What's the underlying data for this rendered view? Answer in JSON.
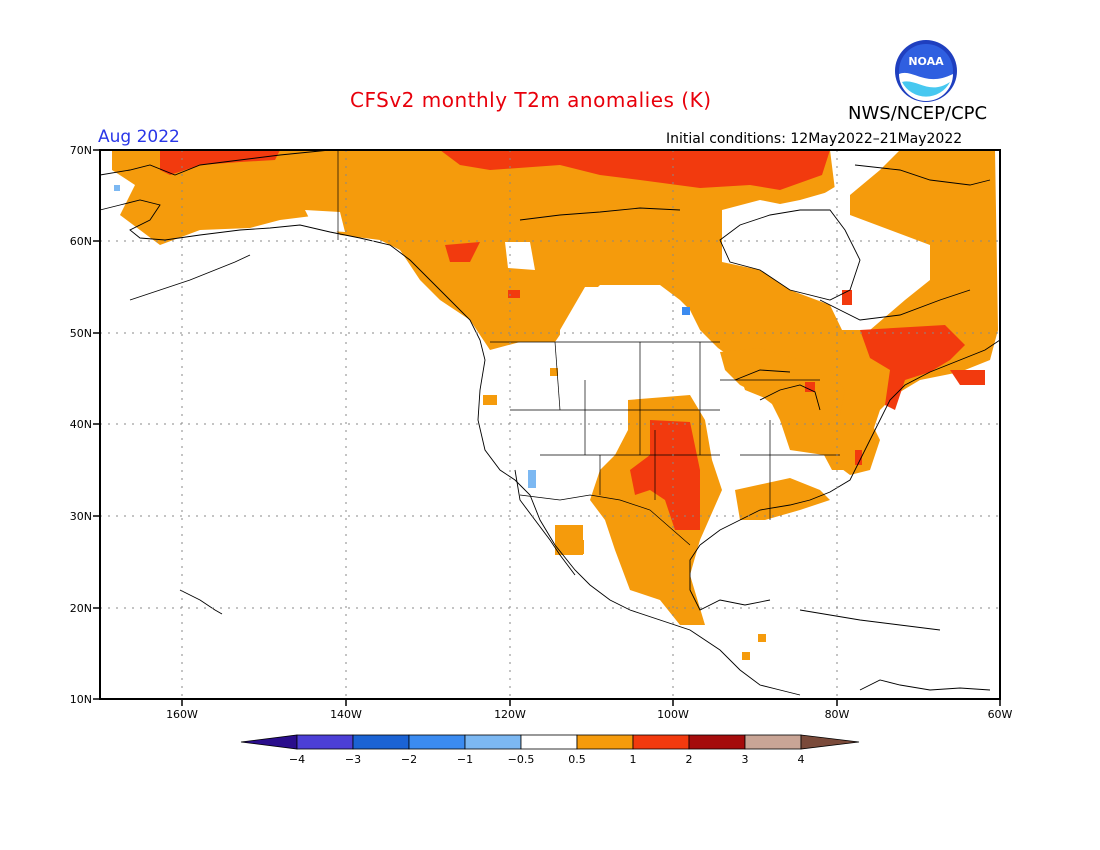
{
  "header": {
    "title": "CFSv2 monthly T2m anomalies (K)",
    "month": "Aug 2022",
    "initial_conditions": "Initial conditions: 12May2022–21May2022",
    "agency": "NWS/NCEP/CPC",
    "logo_text": "NOAA"
  },
  "map": {
    "lat_labels": [
      "70N",
      "60N",
      "50N",
      "40N",
      "30N",
      "20N",
      "10N"
    ],
    "lon_labels": [
      "160W",
      "140W",
      "120W",
      "100W",
      "80W",
      "60W"
    ],
    "lon_range": [
      -170,
      -60
    ],
    "lat_range": [
      10,
      70
    ]
  },
  "legend": {
    "tick_labels": [
      "−4",
      "−3",
      "−2",
      "−1",
      "−0.5",
      "0.5",
      "1",
      "2",
      "3",
      "4"
    ],
    "colors": [
      "#2a0d8c",
      "#4c3fd6",
      "#1b63d4",
      "#3b8bf0",
      "#7cb8f2",
      "#ffffff",
      "#f59b0c",
      "#f23a0e",
      "#a50c0c",
      "#c9a596",
      "#7a4a3a"
    ]
  },
  "colors": {
    "anom_0_5_1": "#f59b0c",
    "anom_1_2": "#f23a0e",
    "anom_neg": "#7cb8f2"
  }
}
